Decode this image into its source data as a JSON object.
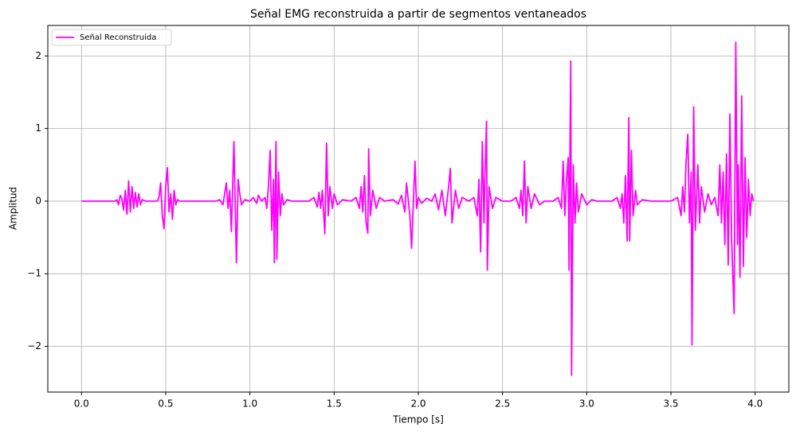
{
  "chart_data": {
    "type": "line",
    "title": "Señal EMG reconstruida a partir de segmentos ventaneados",
    "xlabel": "Tiempo [s]",
    "ylabel": "Amplitud",
    "xlim": [
      -0.2,
      4.2
    ],
    "ylim": [
      -2.63,
      2.42
    ],
    "xticks": [
      {
        "value": 0,
        "label": "0.0"
      },
      0.5,
      {
        "value": 1,
        "label": "1.0"
      },
      1.5,
      {
        "value": 2,
        "label": "2.0"
      },
      2.5,
      {
        "value": 3,
        "label": "3.0"
      },
      3.5,
      {
        "value": 4,
        "label": "4.0"
      }
    ],
    "yticks": [
      {
        "value": -2,
        "label": "−2"
      },
      {
        "value": -1,
        "label": "−1"
      },
      0,
      1,
      2
    ],
    "grid": true,
    "legend": "upper left",
    "x": [
      0,
      0.2,
      0.21,
      0.22,
      0.23,
      0.24,
      0.25,
      0.26,
      0.27,
      0.28,
      0.29,
      0.3,
      0.31,
      0.32,
      0.33,
      0.34,
      0.35,
      0.36,
      0.38,
      0.45,
      0.46,
      0.47,
      0.48,
      0.49,
      0.5,
      0.51,
      0.52,
      0.53,
      0.54,
      0.55,
      0.56,
      0.57,
      0.58,
      0.8,
      0.82,
      0.84,
      0.85,
      0.86,
      0.87,
      0.88,
      0.89,
      0.9,
      0.905,
      0.915,
      0.92,
      0.93,
      0.94,
      0.95,
      0.97,
      1.0,
      1.02,
      1.04,
      1.05,
      1.07,
      1.09,
      1.1,
      1.11,
      1.12,
      1.13,
      1.14,
      1.145,
      1.155,
      1.16,
      1.17,
      1.18,
      1.19,
      1.2,
      1.22,
      1.25,
      1.35,
      1.38,
      1.4,
      1.41,
      1.42,
      1.43,
      1.445,
      1.455,
      1.465,
      1.475,
      1.49,
      1.5,
      1.52,
      1.55,
      1.6,
      1.63,
      1.65,
      1.66,
      1.67,
      1.68,
      1.69,
      1.7,
      1.705,
      1.715,
      1.73,
      1.75,
      1.77,
      1.8,
      1.85,
      1.88,
      1.9,
      1.92,
      1.93,
      1.95,
      1.96,
      1.98,
      1.99,
      2.0,
      2.02,
      2.05,
      2.08,
      2.1,
      2.12,
      2.14,
      2.16,
      2.18,
      2.19,
      2.2,
      2.22,
      2.24,
      2.26,
      2.3,
      2.33,
      2.35,
      2.36,
      2.37,
      2.38,
      2.39,
      2.395,
      2.405,
      2.41,
      2.42,
      2.44,
      2.46,
      2.5,
      2.55,
      2.58,
      2.6,
      2.61,
      2.62,
      2.63,
      2.64,
      2.65,
      2.67,
      2.69,
      2.72,
      2.75,
      2.8,
      2.83,
      2.85,
      2.86,
      2.87,
      2.88,
      2.89,
      2.895,
      2.905,
      2.91,
      2.92,
      2.93,
      2.94,
      2.95,
      2.97,
      3.0,
      3.03,
      3.06,
      3.15,
      3.18,
      3.2,
      3.21,
      3.22,
      3.23,
      3.24,
      3.25,
      3.255,
      3.265,
      3.275,
      3.29,
      3.3,
      3.33,
      3.38,
      3.5,
      3.54,
      3.56,
      3.57,
      3.58,
      3.59,
      3.6,
      3.61,
      3.62,
      3.625,
      3.635,
      3.645,
      3.66,
      3.67,
      3.68,
      3.7,
      3.72,
      3.74,
      3.76,
      3.78,
      3.79,
      3.8,
      3.81,
      3.82,
      3.83,
      3.84,
      3.85,
      3.86,
      3.875,
      3.885,
      3.895,
      3.9,
      3.91,
      3.92,
      3.93,
      3.94,
      3.95,
      3.96,
      3.97,
      3.98,
      3.99
    ],
    "series": [
      {
        "name": "Señal Reconstruida",
        "color": "#ff00ff",
        "values": [
          0,
          0,
          0.02,
          -0.05,
          0.08,
          0.03,
          -0.12,
          0.15,
          -0.18,
          0.28,
          -0.15,
          0.2,
          -0.1,
          0.12,
          -0.08,
          0.1,
          -0.05,
          0.02,
          0,
          0,
          0.05,
          0.25,
          -0.2,
          -0.38,
          0.2,
          0.46,
          -0.15,
          0.1,
          -0.25,
          0.15,
          -0.05,
          0.02,
          0,
          0,
          0.02,
          -0.05,
          0.1,
          0.25,
          -0.1,
          0.15,
          -0.42,
          0.4,
          0.82,
          -0.3,
          -0.85,
          0.3,
          0.1,
          -0.05,
          0.02,
          0,
          0.05,
          -0.03,
          0.08,
          0,
          0.05,
          -0.1,
          0.2,
          0.7,
          -0.4,
          0.3,
          -0.85,
          0.82,
          -0.8,
          0.4,
          -0.2,
          0.1,
          -0.05,
          0.02,
          0,
          0,
          0.05,
          -0.08,
          0.12,
          -0.1,
          0.15,
          -0.45,
          0.8,
          -0.2,
          0.2,
          -0.1,
          0.1,
          -0.05,
          0.02,
          0,
          0.05,
          -0.1,
          0.2,
          -0.15,
          0.35,
          -0.3,
          -0.44,
          0.72,
          -0.2,
          0.15,
          -0.1,
          0.05,
          0,
          0.02,
          -0.04,
          0.08,
          -0.15,
          0.25,
          -0.2,
          -0.65,
          0.55,
          -0.1,
          0.05,
          -0.03,
          0.04,
          0,
          0.1,
          -0.12,
          0.15,
          -0.2,
          0.2,
          0.45,
          -0.3,
          0.15,
          -0.1,
          0.05,
          0,
          0.05,
          -0.2,
          0.3,
          -0.7,
          0.82,
          -0.3,
          0.3,
          1.1,
          -0.95,
          0.2,
          -0.1,
          0.05,
          0,
          0,
          0.05,
          -0.1,
          0.15,
          -0.2,
          0.55,
          -0.3,
          0.2,
          -0.1,
          0.1,
          -0.05,
          0,
          0,
          0.05,
          -0.1,
          0.55,
          -0.2,
          0.3,
          0.6,
          -0.95,
          1.93,
          -2.4,
          0.5,
          -0.3,
          0.25,
          -0.15,
          0.1,
          -0.05,
          0.02,
          0,
          0,
          0.05,
          -0.1,
          0.1,
          -0.3,
          0.35,
          -0.55,
          1.15,
          -0.55,
          0.7,
          -0.2,
          0.15,
          -0.05,
          0.02,
          0,
          0,
          0.05,
          -0.2,
          0.2,
          -0.15,
          0.55,
          0.92,
          -0.3,
          0.4,
          -1.98,
          1.3,
          -0.4,
          0.5,
          -0.3,
          0.2,
          -0.15,
          0.1,
          -0.05,
          0.05,
          -0.2,
          0.5,
          -0.3,
          0.4,
          -0.6,
          0.65,
          -0.88,
          1.2,
          -0.5,
          -1.55,
          2.19,
          -0.6,
          0.5,
          -1.05,
          1.45,
          -0.9,
          0.6,
          -0.5,
          0.3,
          -0.2,
          0.1,
          0
        ]
      }
    ]
  }
}
